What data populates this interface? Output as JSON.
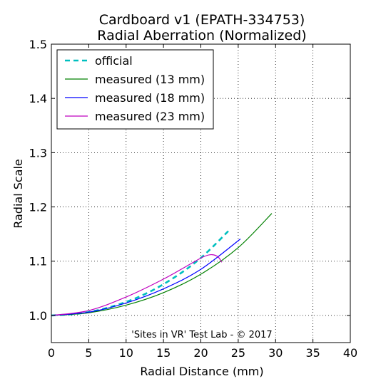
{
  "chart_data": {
    "type": "line",
    "title": [
      "Cardboard v1 (EPATH-334753)",
      "Radial Aberration (Normalized)"
    ],
    "xlabel": "Radial Distance (mm)",
    "ylabel": "Radial Scale",
    "xlim": [
      0,
      40
    ],
    "ylim": [
      0.95,
      1.5
    ],
    "xticks": [
      0,
      5,
      10,
      15,
      20,
      25,
      30,
      35,
      40
    ],
    "yticks": [
      1.0,
      1.1,
      1.2,
      1.3,
      1.4,
      1.5
    ],
    "xtick_labels": [
      "0",
      "5",
      "10",
      "15",
      "20",
      "25",
      "30",
      "35",
      "40"
    ],
    "ytick_labels": [
      "1.0",
      "1.1",
      "1.2",
      "1.3",
      "1.4",
      "1.5"
    ],
    "grid": true,
    "legend_position": "top-left",
    "annotation": "'Sites in VR' Test Lab - © 2017",
    "series": [
      {
        "name": "official",
        "color": "#00bfbf",
        "style": "dashed",
        "x": [
          0,
          4,
          8,
          12,
          16,
          20,
          24
        ],
        "y": [
          1.0,
          1.004,
          1.016,
          1.036,
          1.066,
          1.106,
          1.16
        ]
      },
      {
        "name": "measured (13 mm)",
        "color": "#008000",
        "style": "solid",
        "x": [
          0,
          5,
          10,
          15,
          20,
          25,
          29.5
        ],
        "y": [
          1.0,
          1.005,
          1.019,
          1.042,
          1.076,
          1.125,
          1.188
        ]
      },
      {
        "name": "measured (18 mm)",
        "color": "#0000ff",
        "style": "solid",
        "x": [
          0,
          5,
          10,
          15,
          20,
          25.3
        ],
        "y": [
          1.0,
          1.006,
          1.023,
          1.049,
          1.085,
          1.141
        ]
      },
      {
        "name": "measured (23 mm)",
        "color": "#bf00bf",
        "style": "solid",
        "x": [
          0,
          5,
          10,
          15,
          19,
          20.5,
          21.5,
          22.3,
          22.8
        ],
        "y": [
          1.0,
          1.009,
          1.034,
          1.067,
          1.098,
          1.109,
          1.112,
          1.108,
          1.098
        ]
      }
    ]
  }
}
